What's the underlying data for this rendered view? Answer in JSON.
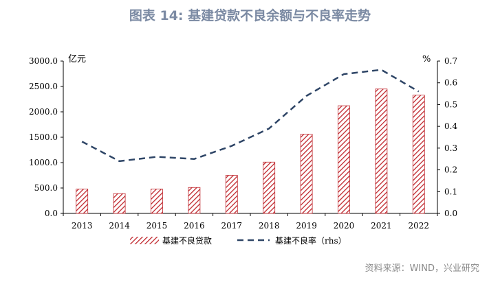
{
  "header": {
    "title": "图表 14: 基建贷款不良余额与不良率走势"
  },
  "footer": {
    "source": "资料来源：WIND，兴业研究"
  },
  "chart_data": {
    "type": "bar",
    "categories": [
      "2013",
      "2014",
      "2015",
      "2016",
      "2017",
      "2018",
      "2019",
      "2020",
      "2021",
      "2022"
    ],
    "series": [
      {
        "name": "基建不良贷款",
        "type": "bar",
        "axis": "left",
        "values": [
          480,
          390,
          480,
          510,
          750,
          1010,
          1560,
          2120,
          2450,
          2330
        ]
      },
      {
        "name": "基建不良率（rhs）",
        "type": "line",
        "axis": "right",
        "values": [
          0.33,
          0.24,
          0.26,
          0.25,
          0.31,
          0.39,
          0.54,
          0.64,
          0.66,
          0.56
        ]
      }
    ],
    "y_left": {
      "unit": "亿元",
      "ylim": [
        0,
        3000
      ],
      "ticks": [
        "0.0",
        "500.0",
        "1000.0",
        "1500.0",
        "2000.0",
        "2500.0",
        "3000.0"
      ]
    },
    "y_right": {
      "unit": "%",
      "ylim": [
        0,
        0.7
      ],
      "ticks": [
        "0.0",
        "0.1",
        "0.2",
        "0.3",
        "0.4",
        "0.5",
        "0.6",
        "0.7"
      ]
    },
    "legend": "bottom",
    "grid": false,
    "colors": {
      "bar": "#c0272d",
      "line": "#2e4566",
      "axis": "#000000"
    }
  }
}
